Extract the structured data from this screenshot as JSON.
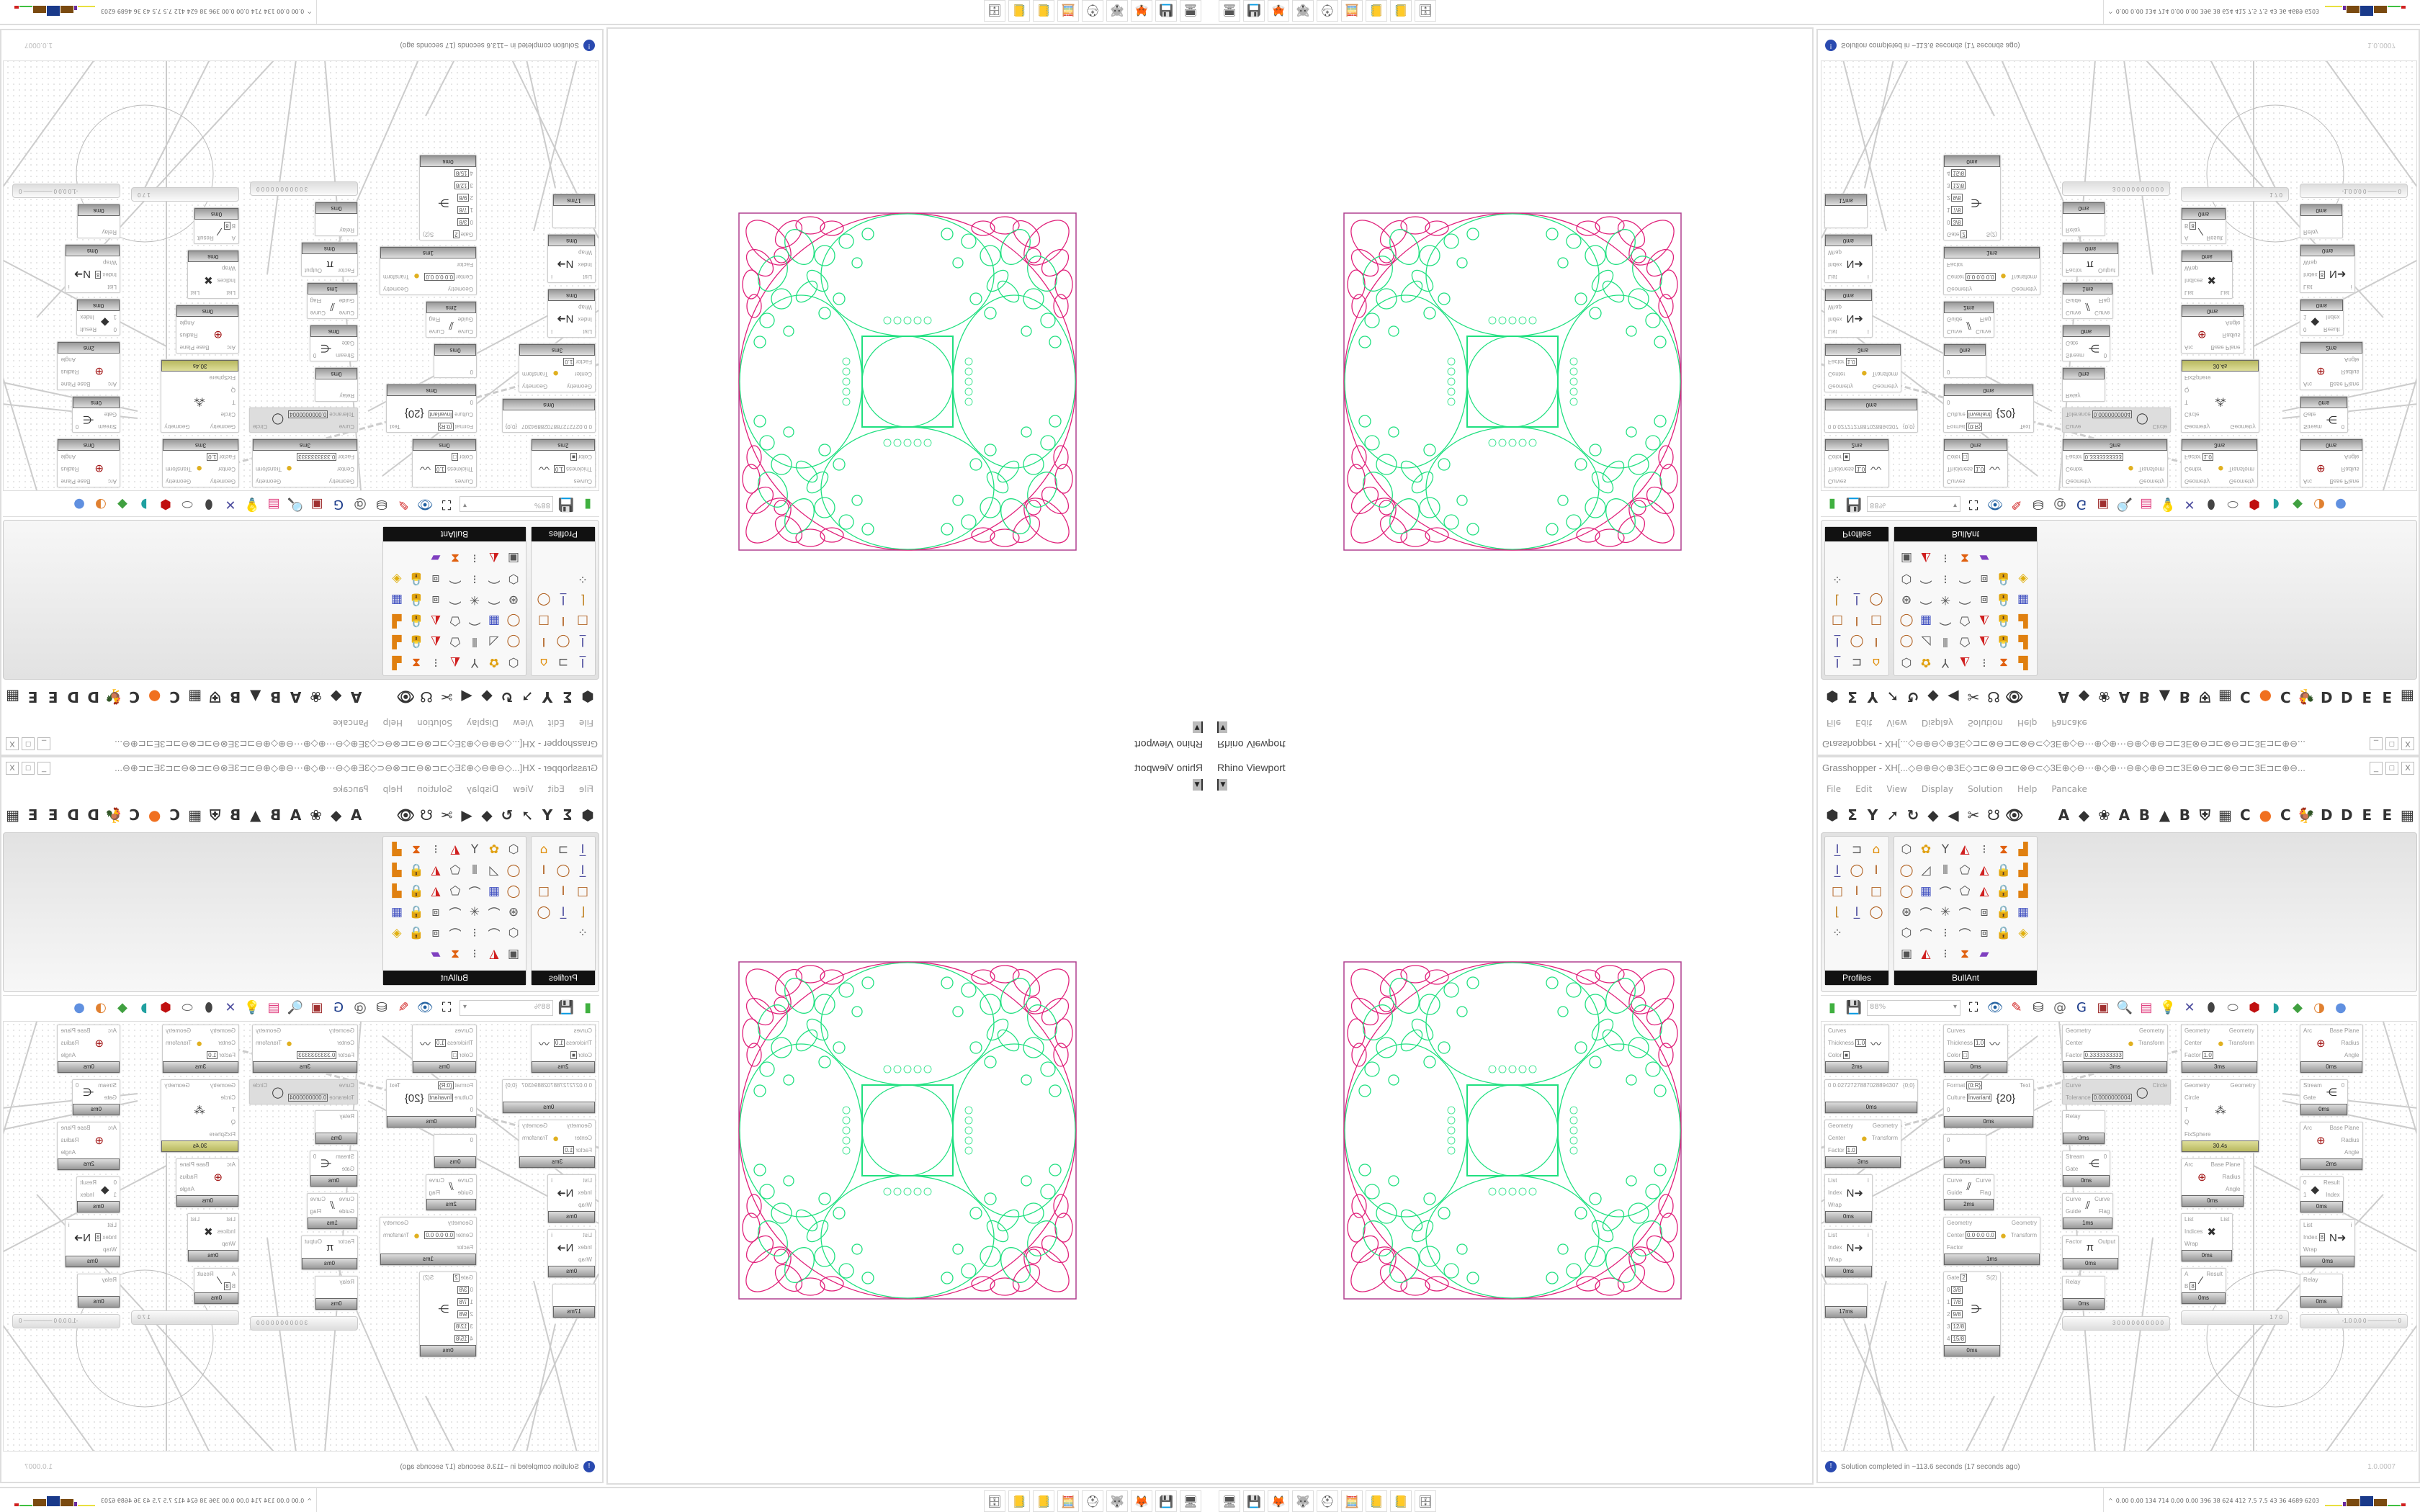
{
  "viewport": {
    "label": "Rhino Viewport",
    "dropdown_icon": "dropdown-arrow-icon"
  },
  "grasshopper": {
    "title": "Grasshopper - XH[...◇⊖⊕⊖◇⊕3E◇⊐⊏⊗⊖⊐⊏⊗⊖⊂◇3E⊕◇⊖⋯⊕◇⊕⋯⊖⊕◇⊕⊖⊐⊏3E⊗⊖⊐⊏⊗⊖⊐⊏3E⊐⊏⊕⊖...",
    "window_buttons": [
      "_",
      "□",
      "X"
    ],
    "menu": [
      "File",
      "Edit",
      "View",
      "Display",
      "Solution",
      "Help",
      "Pancake"
    ],
    "tabs_left": [
      "⬢",
      "Σ",
      "Y",
      "➚",
      "↻",
      "◆",
      "◀",
      "✂",
      "☋",
      "👁"
    ],
    "tabs_right": [
      "A",
      "◆",
      "❀",
      "A",
      "B",
      "▲",
      "B",
      "⛨",
      "▦",
      "C",
      "●",
      "C",
      "🐓",
      "D",
      "D",
      "E",
      "E",
      "▦"
    ],
    "panels": [
      {
        "title": "Profiles",
        "icons": [
          "I-beam-icon",
          "C-channel-icon",
          "roof-icon",
          "I-beam-icon",
          "ring-icon",
          "I-section-icon",
          "box-section-icon",
          "I-section-icon",
          "box-section-icon",
          "angle-icon",
          "I-beam-icon",
          "ring-icon",
          "points-icon"
        ]
      },
      {
        "title": "BullAnt",
        "icons": [
          "solid-icon",
          "flower-icon",
          "tree-icon",
          "tri-icon",
          "align-icon",
          "warp-icon",
          "chart-icon",
          "ring-icon",
          "plane-icon",
          "columns-icon",
          "poly-icon",
          "tri-icon",
          "lock-icon",
          "chart-icon",
          "ring-icon",
          "cube-icon",
          "curve-icon",
          "poly-icon",
          "tri-icon",
          "lock-icon",
          "chart-icon",
          "sphere-icon",
          "curve-icon",
          "star-icon",
          "curve-icon",
          "frame-icon",
          "lock-icon",
          "cube-icon",
          "solid-icon",
          "curve-icon",
          "align-icon",
          "curve-icon",
          "frame-icon",
          "lock-icon",
          "gem-icon",
          "mesh-icon",
          "tri-icon",
          "align-icon",
          "warp-icon",
          "rainbow-icon"
        ]
      }
    ],
    "canvas_toolbar": {
      "zoom": "88%",
      "icons": [
        "open-file-icon",
        "save-icon",
        "zoom-extents-icon",
        "preview-icon",
        "sketch-icon",
        "bake-icon",
        "lock-solver-icon",
        "gha-icon",
        "cluster-icon",
        "search-icon",
        "package-icon",
        "bulb-icon",
        "wire-icon",
        "shape-icon",
        "ring-icon",
        "red-solid-icon",
        "teal-icon",
        "green-icon",
        "sphere-icon",
        "blue-sphere-icon"
      ]
    },
    "nodes": [
      {
        "inputs": [
          {
            "l": "Curves"
          },
          {
            "l": "Thickness",
            "v": "1.0"
          },
          {
            "l": "Color",
            "v": "■"
          }
        ],
        "outputs": [],
        "icon": "〰",
        "time": "2ms"
      },
      {
        "inputs": [
          {
            "l": "Curves"
          },
          {
            "l": "Thickness",
            "v": "1.0"
          },
          {
            "l": "Color",
            "v": "□"
          }
        ],
        "outputs": [],
        "icon": "〰",
        "time": "0ms"
      },
      {
        "inputs": [
          {
            "l": "Geometry"
          },
          {
            "l": "Center"
          },
          {
            "l": "Factor",
            "v": "0.3333333333"
          }
        ],
        "outputs": [
          {
            "l": "Geometry"
          },
          {
            "l": "Transform"
          }
        ],
        "icon": "●",
        "time": "3ms"
      },
      {
        "inputs": [
          {
            "l": "Geometry"
          },
          {
            "l": "Center"
          },
          {
            "l": "Factor",
            "v": "1.0"
          }
        ],
        "outputs": [
          {
            "l": "Geometry"
          },
          {
            "l": "Transform"
          }
        ],
        "icon": "●",
        "time": "3ms"
      },
      {
        "inputs": [
          {
            "l": "Arc"
          }
        ],
        "outputs": [
          {
            "l": "Base Plane"
          },
          {
            "l": "Radius"
          },
          {
            "l": "Angle"
          }
        ],
        "icon": "⊕",
        "time": "0ms"
      },
      {
        "inputs": [
          {
            "l": "0 0.0272727887028894307"
          }
        ],
        "outputs": [
          {
            "l": "{0;0}"
          }
        ],
        "icon": "",
        "time": "0ms"
      },
      {
        "inputs": [
          {
            "l": "Format",
            "v": "{0:R}"
          },
          {
            "l": "Culture",
            "v": "Invariant"
          },
          {
            "l": "0"
          }
        ],
        "outputs": [
          {
            "l": "Text"
          }
        ],
        "icon": "{20}",
        "time": "0ms"
      },
      {
        "inputs": [
          {
            "l": "Curve"
          },
          {
            "l": "Tolerance",
            "v": "0.0000000004"
          }
        ],
        "outputs": [
          {
            "l": "Circle"
          }
        ],
        "icon": "◯",
        "time": ""
      },
      {
        "inputs": [
          {
            "l": "Geometry"
          },
          {
            "l": "Circle"
          },
          {
            "l": "T"
          },
          {
            "l": "Q"
          },
          {
            "l": "FixSphere"
          }
        ],
        "outputs": [
          {
            "l": "Geometry"
          }
        ],
        "icon": "⁂",
        "time": "30.4s"
      },
      {
        "inputs": [
          {
            "l": "Stream"
          },
          {
            "l": "Gate"
          }
        ],
        "outputs": [
          {
            "l": "0"
          }
        ],
        "icon": "⋲",
        "time": "0ms"
      },
      {
        "inputs": [
          {
            "l": "Relay"
          }
        ],
        "outputs": [],
        "icon": "",
        "time": "0ms"
      },
      {
        "inputs": [
          {
            "l": "Geometry"
          },
          {
            "l": "Center"
          },
          {
            "l": "Factor",
            "v": "1.0"
          }
        ],
        "outputs": [
          {
            "l": "Geometry"
          },
          {
            "l": "Transform"
          }
        ],
        "icon": "●",
        "time": "3ms"
      },
      {
        "inputs": [
          {
            "l": "Arc"
          }
        ],
        "outputs": [
          {
            "l": "Base Plane"
          },
          {
            "l": "Radius"
          },
          {
            "l": "Angle"
          }
        ],
        "icon": "⊕",
        "time": "2ms"
      },
      {
        "inputs": [
          {
            "l": "0"
          }
        ],
        "outputs": [],
        "icon": "",
        "time": "0ms"
      },
      {
        "inputs": [
          {
            "l": "Stream"
          },
          {
            "l": "Gate"
          }
        ],
        "outputs": [
          {
            "l": "0"
          }
        ],
        "icon": "⋲",
        "time": "0ms"
      },
      {
        "inputs": [
          {
            "l": "Arc"
          }
        ],
        "outputs": [
          {
            "l": "Base Plane"
          },
          {
            "l": "Radius"
          },
          {
            "l": "Angle"
          }
        ],
        "icon": "⊕",
        "time": "0ms"
      },
      {
        "inputs": [
          {
            "l": "List"
          },
          {
            "l": "Index"
          },
          {
            "l": "Wrap"
          }
        ],
        "outputs": [
          {
            "l": "i"
          }
        ],
        "icon": "N➜",
        "time": "0ms"
      },
      {
        "inputs": [
          {
            "l": "Curve"
          },
          {
            "l": "Guide"
          }
        ],
        "outputs": [
          {
            "l": "Curve"
          },
          {
            "l": "Flag"
          }
        ],
        "icon": "⫽",
        "time": "2ms"
      },
      {
        "inputs": [
          {
            "l": "0"
          },
          {
            "l": "1"
          }
        ],
        "outputs": [
          {
            "l": "Result"
          },
          {
            "l": "Index"
          }
        ],
        "icon": "◆",
        "time": "0ms"
      },
      {
        "inputs": [
          {
            "l": "Curve"
          },
          {
            "l": "Guide"
          }
        ],
        "outputs": [
          {
            "l": "Curve"
          },
          {
            "l": "Flag"
          }
        ],
        "icon": "⫽",
        "time": "1ms"
      },
      {
        "inputs": [
          {
            "l": "List"
          },
          {
            "l": "Indices"
          },
          {
            "l": "Wrap"
          }
        ],
        "outputs": [
          {
            "l": "List"
          }
        ],
        "icon": "✖",
        "time": "0ms"
      },
      {
        "inputs": [
          {
            "l": "Geometry"
          },
          {
            "l": "Center",
            "v": "0.0 0.0 0.0"
          },
          {
            "l": "Factor"
          }
        ],
        "outputs": [
          {
            "l": "Geometry"
          },
          {
            "l": "Transform"
          }
        ],
        "icon": "●",
        "time": "1ms"
      },
      {
        "inputs": [
          {
            "l": "List"
          },
          {
            "l": "Index",
            "v": "8"
          },
          {
            "l": "Wrap"
          }
        ],
        "outputs": [
          {
            "l": "i"
          }
        ],
        "icon": "N➜",
        "time": "0ms"
      },
      {
        "inputs": [
          {
            "l": "List"
          },
          {
            "l": "Index"
          },
          {
            "l": "Wrap"
          }
        ],
        "outputs": [
          {
            "l": "i"
          }
        ],
        "icon": "N➜",
        "time": "0ms"
      },
      {
        "inputs": [
          {
            "l": "Factor"
          }
        ],
        "outputs": [
          {
            "l": "Output"
          }
        ],
        "icon": "π",
        "time": "0ms"
      },
      {
        "inputs": [
          {
            "l": "A"
          },
          {
            "l": "B",
            "v": "8"
          }
        ],
        "outputs": [
          {
            "l": "Result"
          }
        ],
        "icon": "⁄",
        "time": "0ms"
      },
      {
        "inputs": [
          {
            "l": "Gate",
            "v": "2"
          },
          {
            "l": "0",
            "v": "3/8"
          },
          {
            "l": "1",
            "v": "7/8"
          },
          {
            "l": "2",
            "v": "9/8"
          },
          {
            "l": "3",
            "v": "12/8"
          },
          {
            "l": "4",
            "v": "15/8"
          }
        ],
        "outputs": [
          {
            "l": "S(2)"
          }
        ],
        "icon": "⋺",
        "time": "0ms"
      },
      {
        "inputs": [
          {
            "l": "Relay"
          }
        ],
        "outputs": [],
        "icon": "",
        "time": "0ms"
      },
      {
        "inputs": [
          {
            "l": "Relay"
          }
        ],
        "outputs": [],
        "icon": "",
        "time": "0ms"
      },
      {
        "inputs": [],
        "outputs": [],
        "icon": "",
        "time": "17ms"
      }
    ],
    "sliders": [
      {
        "label": "1 7 0"
      },
      {
        "label": "-1.0  0.0  0  ─────── 0"
      },
      {
        "label": "3 0 0 0 0 0 0 0 0 0 0"
      }
    ],
    "status": {
      "icon": "info-icon",
      "message": "Solution completed in ~113.6 seconds (17 seconds ago)",
      "version": "1.0.0007"
    }
  },
  "taskbar": {
    "apps": [
      "🖥",
      "💾",
      "🦊",
      "🐺",
      "⛑",
      "🧮",
      "📒",
      "📒",
      "🗄"
    ],
    "app_names": [
      "monitor-app-icon",
      "floppy-64-icon",
      "firefox-icon",
      "gimp-icon",
      "red-app-icon",
      "calculator-icon",
      "notepad-icon",
      "notepad-icon",
      "archive-icon"
    ],
    "readout": "0.00 0.00 134 714 0.00 0.00 396 38 624 412 7.5 7.5 43 36 4689 6203",
    "bar_colors": [
      "#e8e040",
      "#6a2aa0",
      "#7a4a10",
      "#1a3a8a",
      "#7a4a10",
      "#40c040",
      "#d02020"
    ]
  },
  "pattern_colors": {
    "outer": "#e0207a",
    "inner": "#20e080",
    "frame": "#b04090"
  }
}
